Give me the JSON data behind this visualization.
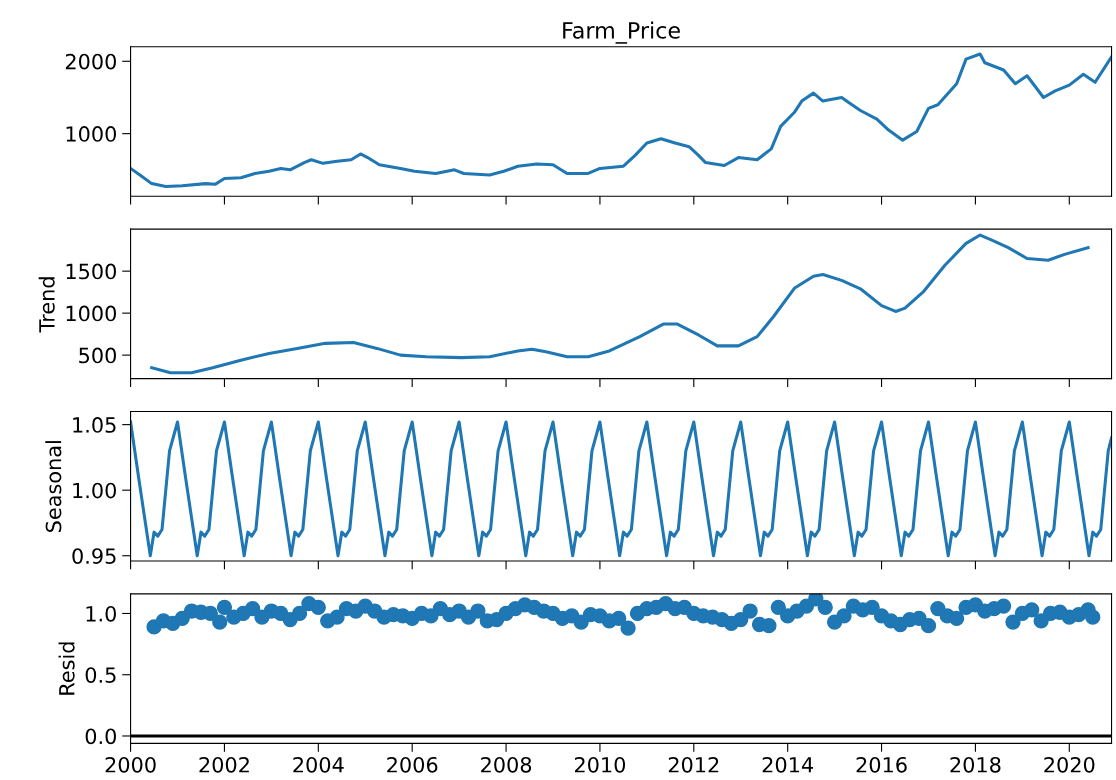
{
  "chart_data": [
    {
      "type": "line",
      "title": "Farm_Price",
      "color": "#1f77b4",
      "xlim": [
        2000,
        2020.9
      ],
      "xticks": [
        2000,
        2002,
        2004,
        2006,
        2008,
        2010,
        2012,
        2014,
        2016,
        2018,
        2020
      ],
      "ylim": [
        135,
        2200
      ],
      "yticks": [
        1000,
        2000
      ],
      "tick_labels": "y",
      "x": [
        2000.0,
        2000.2,
        2000.45,
        2000.75,
        2001.1,
        2001.6,
        2001.8,
        2002.0,
        2002.35,
        2002.65,
        2002.95,
        2003.2,
        2003.4,
        2003.7,
        2003.85,
        2004.1,
        2004.4,
        2004.7,
        2004.9,
        2005.05,
        2005.3,
        2005.75,
        2006.05,
        2006.5,
        2006.9,
        2007.1,
        2007.65,
        2007.95,
        2008.25,
        2008.65,
        2009.0,
        2009.3,
        2009.75,
        2010.0,
        2010.5,
        2010.75,
        2011.0,
        2011.3,
        2011.6,
        2011.9,
        2012.1,
        2012.25,
        2012.65,
        2012.95,
        2013.35,
        2013.65,
        2013.85,
        2014.15,
        2014.3,
        2014.55,
        2014.75,
        2015.15,
        2015.3,
        2015.55,
        2015.9,
        2016.15,
        2016.45,
        2016.75,
        2017.0,
        2017.2,
        2017.6,
        2017.8,
        2018.1,
        2018.2,
        2018.6,
        2018.85,
        2019.1,
        2019.45,
        2019.7,
        2020.0,
        2020.3,
        2020.55,
        2020.9
      ],
      "values": [
        520,
        430,
        310,
        270,
        280,
        310,
        300,
        380,
        390,
        450,
        480,
        520,
        500,
        600,
        640,
        590,
        620,
        640,
        720,
        670,
        570,
        520,
        480,
        450,
        500,
        450,
        430,
        480,
        550,
        580,
        570,
        450,
        450,
        520,
        550,
        700,
        870,
        930,
        870,
        820,
        700,
        600,
        560,
        670,
        640,
        790,
        1100,
        1300,
        1450,
        1560,
        1450,
        1500,
        1430,
        1320,
        1200,
        1050,
        910,
        1030,
        1350,
        1400,
        1690,
        2030,
        2100,
        1980,
        1880,
        1690,
        1800,
        1500,
        1590,
        1670,
        1820,
        1710,
        2060
      ]
    },
    {
      "type": "line",
      "ylabel": "Trend",
      "color": "#1f77b4",
      "xlim": [
        2000,
        2020.9
      ],
      "xticks": [
        2000,
        2002,
        2004,
        2006,
        2008,
        2010,
        2012,
        2014,
        2016,
        2018,
        2020
      ],
      "ylim": [
        220,
        2000
      ],
      "yticks": [
        500,
        1000,
        1500
      ],
      "tick_labels": "y",
      "x": [
        2000.45,
        2000.85,
        2001.3,
        2001.75,
        2002.35,
        2002.95,
        2003.55,
        2004.15,
        2004.75,
        2005.25,
        2005.75,
        2006.3,
        2007.05,
        2007.65,
        2008.25,
        2008.55,
        2008.85,
        2009.3,
        2009.75,
        2010.2,
        2010.85,
        2011.35,
        2011.65,
        2012.1,
        2012.5,
        2012.95,
        2013.35,
        2013.7,
        2014.15,
        2014.55,
        2014.75,
        2015.15,
        2015.55,
        2016.0,
        2016.3,
        2016.5,
        2016.9,
        2017.35,
        2017.8,
        2018.1,
        2018.35,
        2018.7,
        2019.1,
        2019.55,
        2019.9,
        2020.4
      ],
      "values": [
        350,
        290,
        290,
        350,
        440,
        520,
        580,
        640,
        650,
        580,
        500,
        480,
        470,
        480,
        550,
        570,
        540,
        480,
        480,
        550,
        720,
        870,
        870,
        740,
        610,
        610,
        720,
        960,
        1300,
        1440,
        1460,
        1390,
        1290,
        1090,
        1020,
        1060,
        1260,
        1570,
        1830,
        1930,
        1870,
        1780,
        1650,
        1630,
        1700,
        1780
      ]
    },
    {
      "type": "line",
      "ylabel": "Seasonal",
      "color": "#1f77b4",
      "xlim": [
        2000,
        2020.9
      ],
      "xticks": [
        2000,
        2002,
        2004,
        2006,
        2008,
        2010,
        2012,
        2014,
        2016,
        2018,
        2020
      ],
      "ylim": [
        0.946,
        1.06
      ],
      "yticks": [
        {
          "value": 0.95,
          "label": "0.95"
        },
        {
          "value": 1.0,
          "label": "1.00"
        },
        {
          "value": 1.05,
          "label": "1.05"
        }
      ],
      "tick_labels": "y",
      "x": [
        2000.0,
        2000.17,
        2000.42,
        2000.5,
        2000.58,
        2000.67,
        2000.83,
        2001.0,
        2001.17,
        2001.42,
        2001.5,
        2001.58,
        2001.67,
        2001.83,
        2002.0,
        2002.17,
        2002.42,
        2002.5,
        2002.58,
        2002.67,
        2002.83,
        2003.0,
        2003.17,
        2003.42,
        2003.5,
        2003.58,
        2003.67,
        2003.83,
        2004.0,
        2004.17,
        2004.42,
        2004.5,
        2004.58,
        2004.67,
        2004.83,
        2005.0,
        2005.17,
        2005.42,
        2005.5,
        2005.58,
        2005.67,
        2005.83,
        2006.0,
        2006.17,
        2006.42,
        2006.5,
        2006.58,
        2006.67,
        2006.83,
        2007.0,
        2007.17,
        2007.42,
        2007.5,
        2007.58,
        2007.67,
        2007.83,
        2008.0,
        2008.17,
        2008.42,
        2008.5,
        2008.58,
        2008.67,
        2008.83,
        2009.0,
        2009.17,
        2009.42,
        2009.5,
        2009.58,
        2009.67,
        2009.83,
        2010.0,
        2010.17,
        2010.42,
        2010.5,
        2010.58,
        2010.67,
        2010.83,
        2011.0,
        2011.17,
        2011.42,
        2011.5,
        2011.58,
        2011.67,
        2011.83,
        2012.0,
        2012.17,
        2012.42,
        2012.5,
        2012.58,
        2012.67,
        2012.83,
        2013.0,
        2013.17,
        2013.42,
        2013.5,
        2013.58,
        2013.67,
        2013.83,
        2014.0,
        2014.17,
        2014.42,
        2014.5,
        2014.58,
        2014.67,
        2014.83,
        2015.0,
        2015.17,
        2015.42,
        2015.5,
        2015.58,
        2015.67,
        2015.83,
        2016.0,
        2016.17,
        2016.42,
        2016.5,
        2016.58,
        2016.67,
        2016.83,
        2017.0,
        2017.17,
        2017.42,
        2017.5,
        2017.58,
        2017.67,
        2017.83,
        2018.0,
        2018.17,
        2018.42,
        2018.5,
        2018.58,
        2018.67,
        2018.83,
        2019.0,
        2019.17,
        2019.42,
        2019.5,
        2019.58,
        2019.67,
        2019.83,
        2020.0,
        2020.17,
        2020.42,
        2020.5,
        2020.58,
        2020.67,
        2020.83,
        2020.9
      ],
      "values": [
        1.052,
        1.01,
        0.95,
        0.968,
        0.965,
        0.97,
        1.03,
        1.052,
        1.01,
        0.95,
        0.968,
        0.965,
        0.97,
        1.03,
        1.052,
        1.01,
        0.95,
        0.968,
        0.965,
        0.97,
        1.03,
        1.052,
        1.01,
        0.95,
        0.968,
        0.965,
        0.97,
        1.03,
        1.052,
        1.01,
        0.95,
        0.968,
        0.965,
        0.97,
        1.03,
        1.052,
        1.01,
        0.95,
        0.968,
        0.965,
        0.97,
        1.03,
        1.052,
        1.01,
        0.95,
        0.968,
        0.965,
        0.97,
        1.03,
        1.052,
        1.01,
        0.95,
        0.968,
        0.965,
        0.97,
        1.03,
        1.052,
        1.01,
        0.95,
        0.968,
        0.965,
        0.97,
        1.03,
        1.052,
        1.01,
        0.95,
        0.968,
        0.965,
        0.97,
        1.03,
        1.052,
        1.01,
        0.95,
        0.968,
        0.965,
        0.97,
        1.03,
        1.052,
        1.01,
        0.95,
        0.968,
        0.965,
        0.97,
        1.03,
        1.052,
        1.01,
        0.95,
        0.968,
        0.965,
        0.97,
        1.03,
        1.052,
        1.01,
        0.95,
        0.968,
        0.965,
        0.97,
        1.03,
        1.052,
        1.01,
        0.95,
        0.968,
        0.965,
        0.97,
        1.03,
        1.052,
        1.01,
        0.95,
        0.968,
        0.965,
        0.97,
        1.03,
        1.052,
        1.01,
        0.95,
        0.968,
        0.965,
        0.97,
        1.03,
        1.052,
        1.01,
        0.95,
        0.968,
        0.965,
        0.97,
        1.03,
        1.052,
        1.01,
        0.95,
        0.968,
        0.965,
        0.97,
        1.03,
        1.052,
        1.01,
        0.95,
        0.968,
        0.965,
        0.97,
        1.03,
        1.052,
        1.01,
        0.95,
        0.968,
        0.965,
        0.97,
        1.03,
        1.04
      ]
    },
    {
      "type": "scatter",
      "ylabel": "Resid",
      "color": "#1f77b4",
      "marker": "circle",
      "xlim": [
        2000,
        2020.9
      ],
      "xticks": [
        2000,
        2002,
        2004,
        2006,
        2008,
        2010,
        2012,
        2014,
        2016,
        2018,
        2020
      ],
      "ylim": [
        -0.06,
        1.16
      ],
      "yticks": [
        {
          "value": 0.0,
          "label": "0.0"
        },
        {
          "value": 0.5,
          "label": "0.5"
        },
        {
          "value": 1.0,
          "label": "1.0"
        }
      ],
      "ref_lines": [
        {
          "axis": "y",
          "value": 0,
          "color": "#000000"
        }
      ],
      "x": [
        2000.5,
        2000.7,
        2000.9,
        2001.1,
        2001.3,
        2001.5,
        2001.7,
        2001.9,
        2002.0,
        2002.2,
        2002.4,
        2002.6,
        2002.8,
        2003.0,
        2003.2,
        2003.4,
        2003.6,
        2003.8,
        2004.0,
        2004.2,
        2004.4,
        2004.6,
        2004.8,
        2005.0,
        2005.2,
        2005.4,
        2005.6,
        2005.8,
        2006.0,
        2006.2,
        2006.4,
        2006.6,
        2006.8,
        2007.0,
        2007.2,
        2007.4,
        2007.6,
        2007.8,
        2008.0,
        2008.2,
        2008.4,
        2008.6,
        2008.8,
        2009.0,
        2009.2,
        2009.4,
        2009.6,
        2009.8,
        2010.0,
        2010.2,
        2010.4,
        2010.6,
        2010.8,
        2011.0,
        2011.2,
        2011.4,
        2011.6,
        2011.8,
        2012.0,
        2012.2,
        2012.4,
        2012.6,
        2012.8,
        2013.0,
        2013.2,
        2013.4,
        2013.6,
        2013.8,
        2014.0,
        2014.2,
        2014.4,
        2014.6,
        2014.8,
        2015.0,
        2015.2,
        2015.4,
        2015.6,
        2015.8,
        2016.0,
        2016.2,
        2016.4,
        2016.6,
        2016.8,
        2017.0,
        2017.2,
        2017.4,
        2017.6,
        2017.8,
        2018.0,
        2018.2,
        2018.4,
        2018.6,
        2018.8,
        2019.0,
        2019.2,
        2019.4,
        2019.6,
        2019.8,
        2020.0,
        2020.2,
        2020.4,
        2020.5
      ],
      "values": [
        0.89,
        0.94,
        0.92,
        0.96,
        1.02,
        1.01,
        1.0,
        0.93,
        1.05,
        0.97,
        1.0,
        1.04,
        0.97,
        1.02,
        1.0,
        0.95,
        1.0,
        1.08,
        1.05,
        0.94,
        0.97,
        1.04,
        1.02,
        1.06,
        1.02,
        0.97,
        0.99,
        0.98,
        0.96,
        1.0,
        0.98,
        1.04,
        0.99,
        1.02,
        0.97,
        1.02,
        0.94,
        0.95,
        1.0,
        1.04,
        1.07,
        1.05,
        1.02,
        1.0,
        0.96,
        0.98,
        0.93,
        0.99,
        0.98,
        0.94,
        0.96,
        0.88,
        1.0,
        1.04,
        1.05,
        1.08,
        1.04,
        1.05,
        1.0,
        0.98,
        0.97,
        0.95,
        0.92,
        0.95,
        1.02,
        0.91,
        0.9,
        1.05,
        0.98,
        1.02,
        1.06,
        1.12,
        1.05,
        0.93,
        0.98,
        1.06,
        1.03,
        1.05,
        0.98,
        0.94,
        0.91,
        0.95,
        0.96,
        0.9,
        1.04,
        0.98,
        0.96,
        1.05,
        1.07,
        1.02,
        1.04,
        1.06,
        0.93,
        1.0,
        1.03,
        0.94,
        1.0,
        1.01,
        0.97,
        0.99,
        1.03,
        0.97
      ]
    }
  ]
}
